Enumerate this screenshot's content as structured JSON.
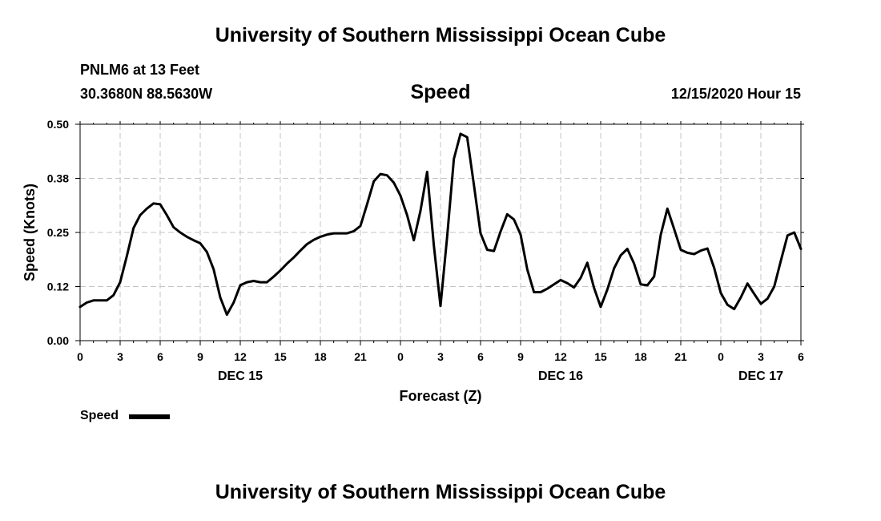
{
  "header": {
    "title_top": "University of Southern Mississippi Ocean Cube",
    "title_bottom": "University of Southern Mississippi Ocean Cube",
    "station": "PNLM6 at 13 Feet",
    "coords": "30.3680N 88.5630W",
    "datetime": "12/15/2020 Hour 15"
  },
  "legend": {
    "label": "Speed"
  },
  "chart_data": {
    "type": "line",
    "title": "Speed",
    "xlabel": "Forecast (Z)",
    "ylabel": "Speed (Knots)",
    "ylim": [
      0,
      0.5
    ],
    "xlim": [
      0,
      54
    ],
    "yticks": [
      "0.00",
      "0.12",
      "0.25",
      "0.38",
      "0.50"
    ],
    "xticks": [
      "0",
      "3",
      "6",
      "9",
      "12",
      "15",
      "18",
      "21",
      "0",
      "3",
      "6",
      "9",
      "12",
      "15",
      "18",
      "21",
      "0",
      "3",
      "6"
    ],
    "day_labels": [
      {
        "text": "DEC 15",
        "hour": 12
      },
      {
        "text": "DEC 16",
        "hour": 36
      },
      {
        "text": "DEC 17",
        "hour": 51
      }
    ],
    "grid": true,
    "series": [
      {
        "name": "Speed",
        "x": [
          0,
          0.5,
          1,
          1.5,
          2,
          2.5,
          3,
          3.5,
          4,
          4.5,
          5,
          5.5,
          6,
          6.5,
          7,
          7.5,
          8,
          8.5,
          9,
          9.5,
          10,
          10.5,
          11,
          11.5,
          12,
          12.5,
          13,
          13.5,
          14,
          14.5,
          15,
          15.5,
          16,
          16.5,
          17,
          17.5,
          18,
          18.5,
          19,
          19.5,
          20,
          20.5,
          21,
          21.5,
          22,
          22.5,
          23,
          23.5,
          24,
          24.5,
          25,
          25.5,
          26,
          26.5,
          27,
          27.5,
          28,
          28.5,
          29,
          29.5,
          30,
          30.5,
          31,
          31.5,
          32,
          32.5,
          33,
          33.5,
          34,
          34.5,
          35,
          35.5,
          36,
          36.5,
          37,
          37.5,
          38,
          38.5,
          39,
          39.5,
          40,
          40.5,
          41,
          41.5,
          42,
          42.5,
          43,
          43.5,
          44,
          44.5,
          45,
          45.5,
          46,
          46.5,
          47,
          47.5,
          48,
          48.5,
          49,
          49.5,
          50,
          50.5,
          51,
          51.5,
          52,
          52.5,
          53,
          53.5,
          54
        ],
        "values": [
          0.078,
          0.088,
          0.093,
          0.093,
          0.093,
          0.105,
          0.135,
          0.195,
          0.26,
          0.29,
          0.305,
          0.317,
          0.315,
          0.29,
          0.262,
          0.25,
          0.24,
          0.232,
          0.225,
          0.205,
          0.165,
          0.1,
          0.06,
          0.088,
          0.128,
          0.135,
          0.138,
          0.135,
          0.135,
          0.148,
          0.162,
          0.178,
          0.192,
          0.208,
          0.223,
          0.233,
          0.24,
          0.245,
          0.248,
          0.248,
          0.248,
          0.253,
          0.265,
          0.315,
          0.368,
          0.385,
          0.382,
          0.365,
          0.335,
          0.29,
          0.232,
          0.3,
          0.39,
          0.22,
          0.08,
          0.24,
          0.42,
          0.478,
          0.47,
          0.36,
          0.248,
          0.21,
          0.207,
          0.252,
          0.292,
          0.28,
          0.245,
          0.165,
          0.112,
          0.112,
          0.12,
          0.13,
          0.14,
          0.133,
          0.123,
          0.145,
          0.18,
          0.122,
          0.078,
          0.118,
          0.167,
          0.197,
          0.212,
          0.178,
          0.13,
          0.128,
          0.148,
          0.245,
          0.305,
          0.258,
          0.21,
          0.203,
          0.2,
          0.208,
          0.213,
          0.168,
          0.11,
          0.083,
          0.073,
          0.1,
          0.132,
          0.108,
          0.085,
          0.097,
          0.125,
          0.185,
          0.243,
          0.25,
          0.212
        ]
      }
    ]
  }
}
